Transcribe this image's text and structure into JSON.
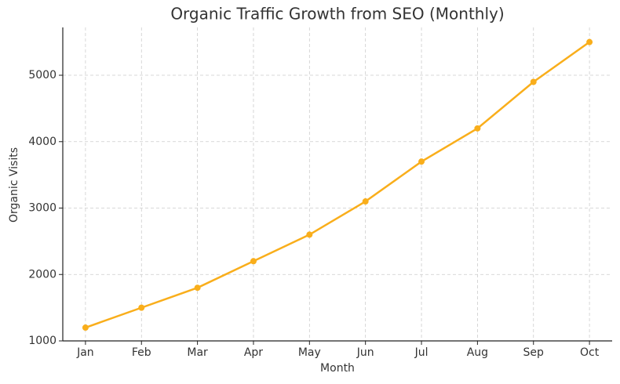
{
  "chart_data": {
    "type": "line",
    "title": "Organic Traffic Growth from SEO (Monthly)",
    "x_label": "Month",
    "y_label": "Organic Visits",
    "categories": [
      "Jan",
      "Feb",
      "Mar",
      "Apr",
      "May",
      "Jun",
      "Jul",
      "Aug",
      "Sep",
      "Oct"
    ],
    "series": [
      {
        "name": "Organic Visits",
        "color": "#f9ae1b",
        "values": [
          1200,
          1500,
          1800,
          2200,
          2600,
          3100,
          3700,
          4200,
          4900,
          5500
        ]
      }
    ],
    "ylim": [
      1000,
      5720
    ],
    "yticks": [
      1000,
      2000,
      3000,
      4000,
      5000
    ],
    "grid": true
  }
}
